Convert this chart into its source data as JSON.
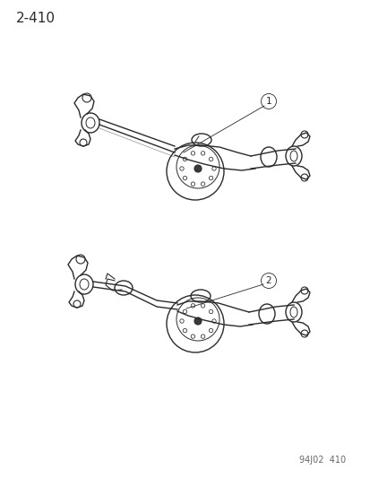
{
  "page_ref": "2-410",
  "watermark": "94J02  410",
  "background_color": "#ffffff",
  "line_color": "#2a2a2a",
  "title_fontsize": 11,
  "watermark_fontsize": 7,
  "part_label_1": "1",
  "part_label_2": "2",
  "fig_width": 4.14,
  "fig_height": 5.33,
  "dpi": 100
}
